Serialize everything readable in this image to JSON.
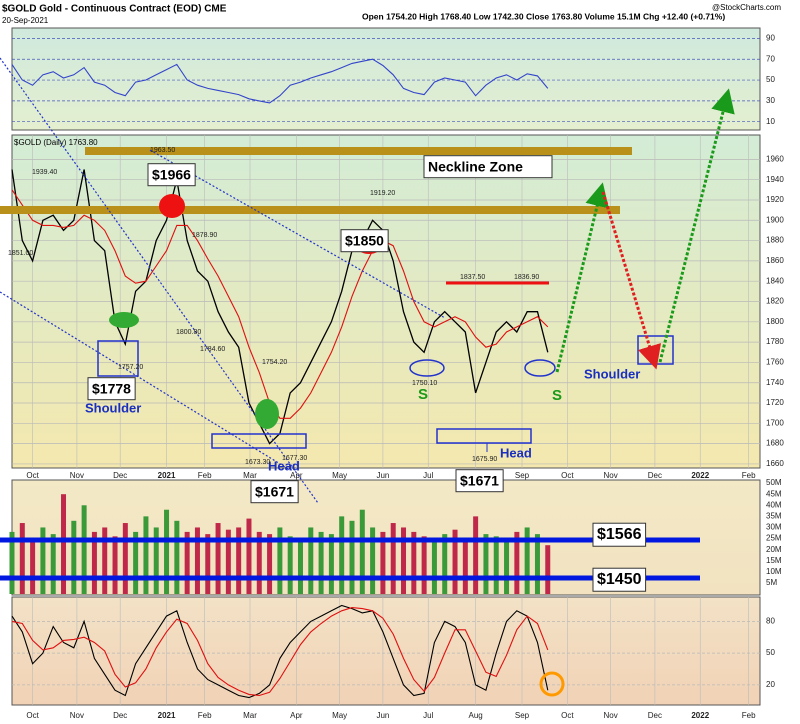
{
  "header": {
    "title": "$GOLD Gold - Continuous Contract (EOD) CME",
    "date": "20-Sep-2021",
    "quote": "Open 1754.20 High 1768.40 Low 1742.30 Close 1763.80 Volume 15.1M Chg +12.40 (+0.71%)",
    "credit": "@StockCharts.com"
  },
  "annotations": [
    "$1966",
    "$1850",
    "$1778",
    "Shoulder",
    "$1671",
    "Head",
    "$1671",
    "Head",
    "S",
    "S",
    "Shoulder",
    "Neckline Zone",
    "$1566",
    "$1450"
  ],
  "price_labels": [
    "1939.40",
    "1851.00",
    "1963.50",
    "1878.90",
    "1800.80",
    "1784.60",
    "1757.20",
    "1754.20",
    "1677.30",
    "1673.30",
    "1919.20",
    "1837.50",
    "1836.90",
    "1750.10",
    "1675.90"
  ],
  "chart_data": [
    {
      "type": "line",
      "xlim": [
        0,
        72.6
      ],
      "ylim": [
        1656,
        1984
      ],
      "grid": true,
      "yticks": [
        1660,
        1680,
        1700,
        1720,
        1740,
        1760,
        1780,
        1800,
        1820,
        1840,
        1860,
        1880,
        1900,
        1920,
        1940,
        1960
      ],
      "xticks": [
        {
          "value": 2.0,
          "label": "Oct"
        },
        {
          "value": 6.3,
          "label": "Nov"
        },
        {
          "value": 10.5,
          "label": "Dec"
        },
        {
          "value": 15.0,
          "label": "2021"
        },
        {
          "value": 18.7,
          "label": "Feb"
        },
        {
          "value": 23.1,
          "label": "Mar"
        },
        {
          "value": 27.6,
          "label": "Apr"
        },
        {
          "value": 31.8,
          "label": "May"
        },
        {
          "value": 36.0,
          "label": "Jun"
        },
        {
          "value": 40.4,
          "label": "Jul"
        },
        {
          "value": 45.0,
          "label": "Aug"
        },
        {
          "value": 49.5,
          "label": "Sep"
        },
        {
          "value": 53.9,
          "label": "Oct"
        },
        {
          "value": 58.1,
          "label": "Nov"
        },
        {
          "value": 62.4,
          "label": "Dec"
        },
        {
          "value": 66.8,
          "label": "2022"
        },
        {
          "value": 71.5,
          "label": "Feb"
        }
      ],
      "x": [
        0,
        1,
        2,
        3,
        4,
        5,
        6,
        7,
        8,
        9,
        10,
        11,
        12,
        13,
        14,
        15,
        16,
        17,
        18,
        19,
        20,
        21,
        22,
        23,
        24,
        25,
        26,
        27,
        28,
        29,
        30,
        31,
        32,
        33,
        34,
        35,
        36,
        37,
        38,
        39,
        40,
        41,
        42,
        43,
        44,
        45,
        46,
        47,
        48,
        49,
        50,
        51,
        52
      ],
      "series": [
        {
          "name": "$GOLD (Daily) 1763.80",
          "color": "#000000",
          "values": [
            1950,
            1880,
            1860,
            1900,
            1905,
            1890,
            1900,
            1950,
            1880,
            1870,
            1800,
            1778,
            1830,
            1840,
            1880,
            1900,
            1940,
            1880,
            1850,
            1840,
            1810,
            1790,
            1775,
            1720,
            1700,
            1680,
            1690,
            1730,
            1740,
            1760,
            1780,
            1800,
            1830,
            1870,
            1880,
            1900,
            1890,
            1860,
            1810,
            1780,
            1770,
            1800,
            1810,
            1800,
            1790,
            1730,
            1760,
            1790,
            1800,
            1790,
            1810,
            1810,
            1770
          ]
        },
        {
          "color": "#e01010",
          "values": [
            1930,
            1915,
            1900,
            1895,
            1895,
            1893,
            1895,
            1905,
            1900,
            1890,
            1870,
            1845,
            1838,
            1840,
            1855,
            1870,
            1895,
            1895,
            1880,
            1862,
            1845,
            1825,
            1805,
            1775,
            1750,
            1720,
            1705,
            1705,
            1715,
            1730,
            1750,
            1770,
            1795,
            1825,
            1850,
            1870,
            1880,
            1875,
            1850,
            1820,
            1800,
            1795,
            1800,
            1805,
            1800,
            1785,
            1775,
            1778,
            1790,
            1795,
            1800,
            1805,
            1795
          ]
        }
      ]
    },
    {
      "type": "line",
      "xlim": [
        0,
        72.6
      ],
      "ylim": [
        2,
        100
      ],
      "grid": true,
      "yticks": [
        10,
        30,
        50,
        70,
        90
      ],
      "x": [
        0,
        1,
        2,
        3,
        4,
        5,
        6,
        7,
        8,
        9,
        10,
        11,
        12,
        13,
        14,
        15,
        16,
        17,
        18,
        19,
        20,
        21,
        22,
        23,
        24,
        25,
        26,
        27,
        28,
        29,
        30,
        31,
        32,
        33,
        34,
        35,
        36,
        37,
        38,
        39,
        40,
        41,
        42,
        43,
        44,
        45,
        46,
        47,
        48,
        49,
        50,
        51,
        52
      ],
      "series": [
        {
          "color": "#3344cc",
          "values": [
            65,
            50,
            45,
            55,
            58,
            52,
            55,
            62,
            48,
            45,
            38,
            35,
            48,
            50,
            55,
            60,
            65,
            50,
            45,
            42,
            40,
            38,
            36,
            32,
            30,
            28,
            35,
            45,
            48,
            52,
            55,
            58,
            62,
            66,
            68,
            70,
            64,
            55,
            42,
            38,
            36,
            48,
            52,
            50,
            48,
            35,
            45,
            52,
            55,
            50,
            56,
            54,
            42
          ]
        }
      ]
    },
    {
      "type": "bar",
      "xlim": [
        0,
        72.6
      ],
      "ylim": [
        0,
        51.4
      ],
      "up_color": "#3a9a3a",
      "down_color": "#c0284a",
      "yticks": [
        {
          "value": 5,
          "label": "5M"
        },
        {
          "value": 10,
          "label": "10M"
        },
        {
          "value": 15,
          "label": "15M"
        },
        {
          "value": 20,
          "label": "20M"
        },
        {
          "value": 25,
          "label": "25M"
        },
        {
          "value": 30,
          "label": "30M"
        },
        {
          "value": 35,
          "label": "35M"
        },
        {
          "value": 40,
          "label": "40M"
        },
        {
          "value": 45,
          "label": "45M"
        },
        {
          "value": 50,
          "label": "50M"
        }
      ],
      "x": [
        0,
        1,
        2,
        3,
        4,
        5,
        6,
        7,
        8,
        9,
        10,
        11,
        12,
        13,
        14,
        15,
        16,
        17,
        18,
        19,
        20,
        21,
        22,
        23,
        24,
        25,
        26,
        27,
        28,
        29,
        30,
        31,
        32,
        33,
        34,
        35,
        36,
        37,
        38,
        39,
        40,
        41,
        42,
        43,
        44,
        45,
        46,
        47,
        48,
        49,
        50,
        51,
        52
      ],
      "values": [
        28,
        32,
        25,
        30,
        27,
        45,
        33,
        40,
        28,
        30,
        26,
        32,
        28,
        35,
        30,
        38,
        33,
        28,
        30,
        27,
        32,
        29,
        30,
        34,
        28,
        27,
        30,
        26,
        25,
        30,
        28,
        27,
        35,
        33,
        38,
        30,
        28,
        32,
        30,
        28,
        26,
        25,
        27,
        29,
        25,
        35,
        27,
        26,
        24,
        28,
        30,
        27,
        22
      ]
    },
    {
      "type": "line",
      "xlim": [
        0,
        72.6
      ],
      "ylim": [
        1,
        103
      ],
      "grid": true,
      "yticks": [
        20,
        50,
        80
      ],
      "xticks": [
        {
          "value": 2.0,
          "label": "Oct"
        },
        {
          "value": 6.3,
          "label": "Nov"
        },
        {
          "value": 10.5,
          "label": "Dec"
        },
        {
          "value": 15.0,
          "label": "2021"
        },
        {
          "value": 18.7,
          "label": "Feb"
        },
        {
          "value": 23.1,
          "label": "Mar"
        },
        {
          "value": 27.6,
          "label": "Apr"
        },
        {
          "value": 31.8,
          "label": "May"
        },
        {
          "value": 36.0,
          "label": "Jun"
        },
        {
          "value": 40.4,
          "label": "Jul"
        },
        {
          "value": 45.0,
          "label": "Aug"
        },
        {
          "value": 49.5,
          "label": "Sep"
        },
        {
          "value": 53.9,
          "label": "Oct"
        },
        {
          "value": 58.1,
          "label": "Nov"
        },
        {
          "value": 62.4,
          "label": "Dec"
        },
        {
          "value": 66.8,
          "label": "2022"
        },
        {
          "value": 71.5,
          "label": "Feb"
        }
      ],
      "x": [
        0,
        1,
        2,
        3,
        4,
        5,
        6,
        7,
        8,
        9,
        10,
        11,
        12,
        13,
        14,
        15,
        16,
        17,
        18,
        19,
        20,
        21,
        22,
        23,
        24,
        25,
        26,
        27,
        28,
        29,
        30,
        31,
        32,
        33,
        34,
        35,
        36,
        37,
        38,
        39,
        40,
        41,
        42,
        43,
        44,
        45,
        46,
        47,
        48,
        49,
        50,
        51,
        52
      ],
      "series": [
        {
          "color": "#000000",
          "values": [
            85,
            70,
            40,
            50,
            75,
            60,
            55,
            80,
            45,
            30,
            15,
            10,
            40,
            55,
            70,
            85,
            90,
            60,
            35,
            25,
            20,
            15,
            10,
            8,
            12,
            20,
            45,
            60,
            70,
            80,
            85,
            90,
            95,
            92,
            88,
            90,
            70,
            45,
            20,
            10,
            12,
            60,
            80,
            75,
            60,
            20,
            15,
            50,
            80,
            90,
            85,
            60,
            15
          ]
        },
        {
          "color": "#e01010",
          "values": [
            80,
            78,
            62,
            53,
            55,
            62,
            63,
            65,
            60,
            52,
            30,
            18,
            22,
            35,
            55,
            70,
            82,
            78,
            62,
            40,
            27,
            20,
            15,
            11,
            10,
            13,
            26,
            42,
            58,
            70,
            78,
            85,
            90,
            93,
            92,
            90,
            83,
            68,
            45,
            25,
            14,
            27,
            50,
            72,
            72,
            52,
            32,
            28,
            48,
            72,
            85,
            78,
            53
          ]
        }
      ]
    }
  ]
}
